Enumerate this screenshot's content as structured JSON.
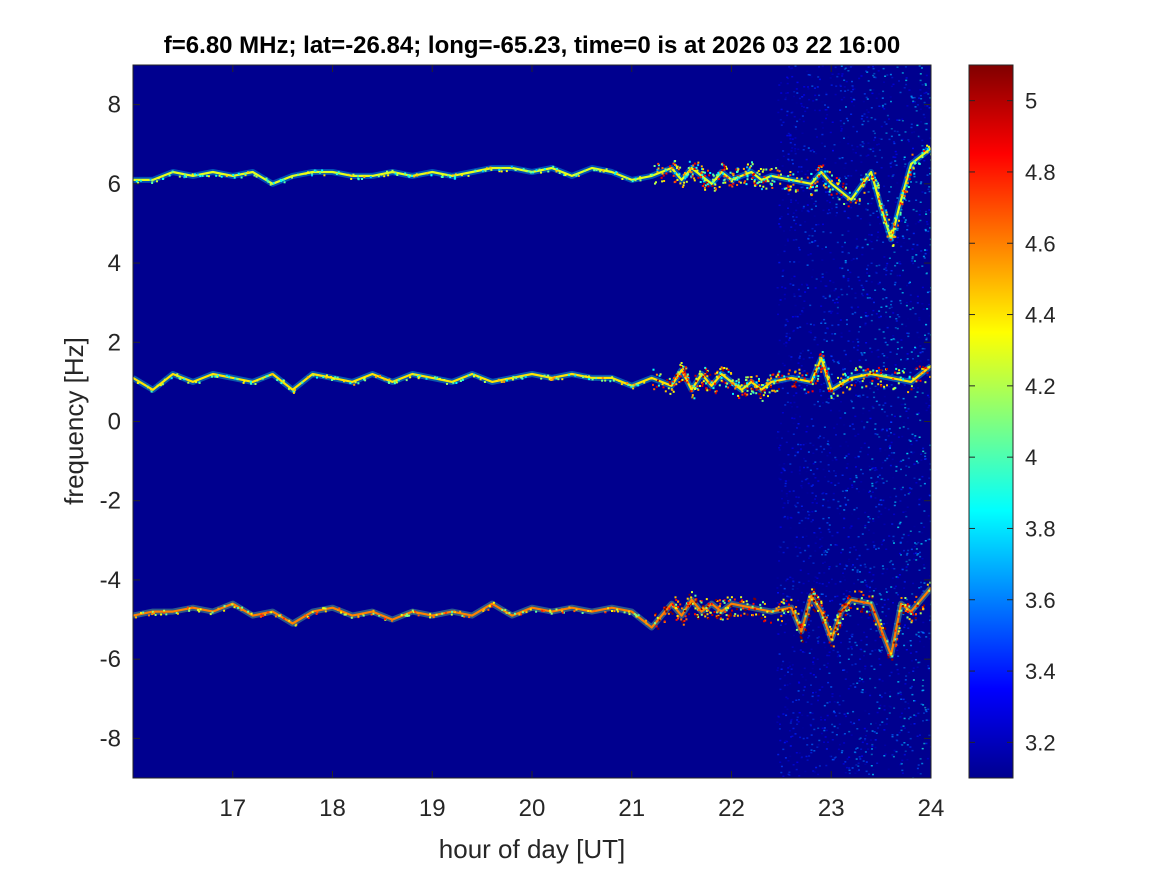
{
  "chart_data": {
    "type": "heatmap",
    "title": "f=6.80 MHz;  lat=-26.84; long=-65.23, time=0 is at 2026 03 22 16:00",
    "xlabel": "hour of day [UT]",
    "ylabel": "frequency [Hz]",
    "xlim": [
      16,
      24
    ],
    "ylim": [
      -9,
      9
    ],
    "xticks": [
      17,
      18,
      19,
      20,
      21,
      22,
      23,
      24
    ],
    "yticks": [
      -8,
      -6,
      -4,
      -2,
      0,
      2,
      4,
      6,
      8
    ],
    "colorbar": {
      "clim": [
        3.1,
        5.1
      ],
      "ticks": [
        3.2,
        3.4,
        3.6,
        3.8,
        4,
        4.2,
        4.4,
        4.6,
        4.8,
        5
      ],
      "colormap": "jet"
    },
    "background_color": "#00008F",
    "noise_onset_hour": 22.45,
    "traces": [
      {
        "hour": [
          16.0,
          16.2,
          16.4,
          16.6,
          16.8,
          17.0,
          17.2,
          17.4,
          17.6,
          17.8,
          18.0,
          18.2,
          18.4,
          18.6,
          18.8,
          19.0,
          19.2,
          19.4,
          19.6,
          19.8,
          20.0,
          20.2,
          20.4,
          20.6,
          20.8,
          21.0,
          21.2,
          21.4,
          21.5,
          21.6,
          21.7,
          21.8,
          21.9,
          22.0,
          22.1,
          22.2,
          22.3,
          22.4,
          22.6,
          22.8,
          22.9,
          23.0,
          23.2,
          23.4,
          23.5,
          23.6,
          23.7,
          23.8,
          24.0
        ],
        "frequency": [
          6.1,
          6.1,
          6.3,
          6.2,
          6.3,
          6.2,
          6.3,
          6.0,
          6.2,
          6.3,
          6.3,
          6.2,
          6.2,
          6.3,
          6.2,
          6.3,
          6.2,
          6.3,
          6.4,
          6.4,
          6.3,
          6.4,
          6.2,
          6.4,
          6.3,
          6.1,
          6.2,
          6.4,
          6.1,
          6.4,
          6.2,
          6.0,
          6.3,
          6.1,
          6.2,
          6.3,
          6.1,
          6.2,
          6.1,
          6.0,
          6.3,
          6.0,
          5.6,
          6.3,
          5.4,
          4.6,
          5.6,
          6.5,
          6.9
        ],
        "intensity": 4.3
      },
      {
        "hour": [
          16.0,
          16.2,
          16.4,
          16.6,
          16.8,
          17.0,
          17.2,
          17.4,
          17.6,
          17.8,
          18.0,
          18.2,
          18.4,
          18.6,
          18.8,
          19.0,
          19.2,
          19.4,
          19.6,
          19.8,
          20.0,
          20.2,
          20.4,
          20.6,
          20.8,
          21.0,
          21.2,
          21.4,
          21.5,
          21.6,
          21.7,
          21.8,
          21.9,
          22.0,
          22.1,
          22.2,
          22.3,
          22.4,
          22.6,
          22.8,
          22.9,
          23.0,
          23.2,
          23.4,
          23.6,
          23.8,
          24.0
        ],
        "frequency": [
          1.1,
          0.8,
          1.2,
          1.0,
          1.2,
          1.1,
          1.0,
          1.2,
          0.8,
          1.2,
          1.1,
          1.0,
          1.2,
          1.0,
          1.2,
          1.1,
          1.0,
          1.2,
          1.0,
          1.1,
          1.2,
          1.1,
          1.2,
          1.1,
          1.1,
          0.9,
          1.1,
          0.9,
          1.3,
          0.8,
          1.2,
          0.9,
          1.2,
          1.0,
          0.8,
          1.0,
          0.8,
          1.0,
          1.1,
          1.0,
          1.6,
          0.8,
          1.1,
          1.2,
          1.1,
          1.0,
          1.4
        ],
        "intensity": 4.4
      },
      {
        "hour": [
          16.0,
          16.2,
          16.4,
          16.6,
          16.8,
          17.0,
          17.2,
          17.4,
          17.6,
          17.8,
          18.0,
          18.2,
          18.4,
          18.6,
          18.8,
          19.0,
          19.2,
          19.4,
          19.6,
          19.8,
          20.0,
          20.2,
          20.4,
          20.6,
          20.8,
          21.0,
          21.2,
          21.4,
          21.5,
          21.6,
          21.7,
          21.8,
          21.9,
          22.0,
          22.2,
          22.4,
          22.6,
          22.7,
          22.8,
          22.9,
          23.0,
          23.1,
          23.2,
          23.4,
          23.6,
          23.7,
          23.8,
          24.0
        ],
        "frequency": [
          -4.9,
          -4.8,
          -4.8,
          -4.7,
          -4.8,
          -4.6,
          -4.9,
          -4.8,
          -5.1,
          -4.8,
          -4.7,
          -4.9,
          -4.8,
          -5.0,
          -4.8,
          -4.9,
          -4.8,
          -4.9,
          -4.6,
          -4.9,
          -4.7,
          -4.8,
          -4.7,
          -4.8,
          -4.7,
          -4.8,
          -5.2,
          -4.6,
          -4.9,
          -4.5,
          -4.8,
          -4.6,
          -4.8,
          -4.6,
          -4.7,
          -4.8,
          -4.7,
          -5.3,
          -4.4,
          -4.8,
          -5.5,
          -4.8,
          -4.5,
          -4.6,
          -5.9,
          -4.6,
          -4.8,
          -4.2
        ],
        "intensity": 4.6
      }
    ]
  }
}
